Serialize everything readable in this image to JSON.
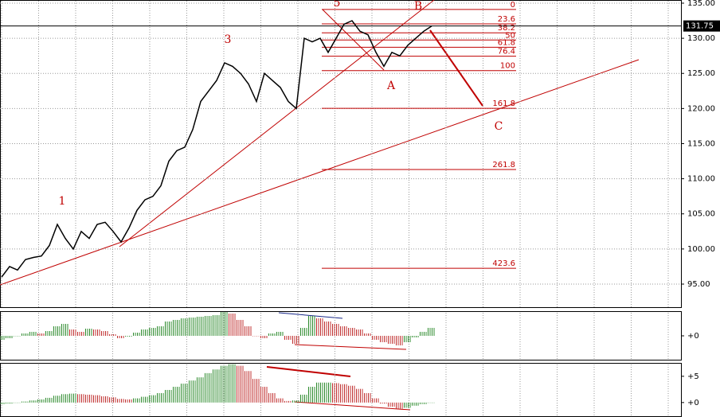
{
  "chart_data": [
    {
      "type": "line",
      "x": [
        0,
        1,
        2,
        3,
        4,
        5,
        6,
        7,
        8,
        9,
        10,
        11,
        12,
        13,
        14,
        15,
        16,
        17,
        18,
        19,
        20,
        21,
        22,
        23,
        24,
        25,
        26,
        27,
        28,
        29,
        30,
        31,
        32,
        33,
        34,
        35,
        36,
        37,
        38,
        39,
        40,
        41,
        42,
        43,
        44,
        45,
        46,
        47,
        48,
        49,
        50,
        51,
        52,
        53,
        54
      ],
      "values": [
        96,
        97.5,
        97,
        98.5,
        98.8,
        99,
        100.5,
        103.5,
        101.5,
        100,
        102.5,
        101.5,
        103.5,
        103.8,
        102.5,
        101,
        103,
        105.5,
        107,
        107.5,
        109,
        112.5,
        114,
        114.5,
        117,
        121,
        122.5,
        124,
        126.5,
        126,
        125,
        123.5,
        121,
        125,
        124,
        123,
        121,
        120,
        130,
        129.5,
        130,
        128,
        130,
        132,
        132.5,
        131,
        130.5,
        128,
        126,
        128,
        127.5,
        129,
        130,
        131,
        131.75
      ],
      "color": "#000000",
      "xlim": [
        -0.2,
        85.3
      ],
      "ylim": [
        91.6,
        135.45
      ],
      "yticks": [
        {
          "value": 95,
          "label": "95.00"
        },
        {
          "value": 100,
          "label": "100.00"
        },
        {
          "value": 105,
          "label": "105.00"
        },
        {
          "value": 110,
          "label": "110.00"
        },
        {
          "value": 115,
          "label": "115.00"
        },
        {
          "value": 120,
          "label": "120.00"
        },
        {
          "value": 125,
          "label": "125.00"
        },
        {
          "value": 130,
          "label": "130.00"
        },
        {
          "value": 135,
          "label": "135.00"
        }
      ],
      "grid": true,
      "last_value": 131.75,
      "levels": [
        {
          "value": 134.1,
          "label": "0"
        },
        {
          "value": 132.05,
          "label": "23.6"
        },
        {
          "value": 130.78,
          "label": "38.2"
        },
        {
          "value": 129.75,
          "label": "50"
        },
        {
          "value": 128.72,
          "label": "61.8"
        },
        {
          "value": 127.45,
          "label": "76.4"
        },
        {
          "value": 125.4,
          "label": "100"
        },
        {
          "value": 120.02,
          "label": "161.8"
        },
        {
          "value": 111.32,
          "label": "261.8"
        },
        {
          "value": 97.25,
          "label": "423.6"
        }
      ],
      "level_color": "#c00000",
      "annotations": [
        "1",
        "3",
        "5",
        "A",
        "B",
        "C"
      ]
    },
    {
      "type": "bar",
      "values": [
        -0.5,
        -0.3,
        0,
        0.3,
        0.5,
        0.3,
        0.6,
        1.2,
        1.5,
        0.8,
        0.5,
        0.9,
        0.8,
        0.6,
        0.2,
        -0.3,
        -0.1,
        0.4,
        0.8,
        1.0,
        1.2,
        1.8,
        2.0,
        2.2,
        2.3,
        2.4,
        2.5,
        2.6,
        3.0,
        2.8,
        2.0,
        1.2,
        0,
        -0.3,
        0.3,
        0.5,
        -0.5,
        -1.0,
        1.0,
        2.5,
        2.2,
        1.8,
        1.5,
        1.2,
        1.0,
        0.8,
        0.3,
        -0.5,
        -0.8,
        -1.0,
        -1.2,
        -0.8,
        -0.2,
        0.5,
        1.0
      ],
      "ylim": [
        -3,
        3
      ],
      "yticks": [
        {
          "value": 0,
          "label": "+0"
        }
      ],
      "up_color": "#2e8b2e",
      "down_color": "#c03030"
    },
    {
      "type": "bar",
      "values": [
        -0.3,
        -0.2,
        0,
        0.2,
        0.4,
        0.6,
        0.9,
        1.3,
        1.6,
        1.7,
        1.6,
        1.5,
        1.4,
        1.2,
        1.0,
        0.7,
        0.6,
        0.8,
        1.1,
        1.4,
        1.8,
        2.4,
        3.0,
        3.6,
        4.2,
        4.8,
        5.6,
        6.3,
        7.0,
        7.3,
        7.0,
        6.0,
        4.5,
        3.0,
        1.8,
        0.8,
        0.3,
        0.4,
        1.5,
        3.0,
        3.8,
        3.8,
        3.7,
        3.5,
        3.2,
        2.6,
        1.8,
        0.8,
        -0.2,
        -0.8,
        -1.2,
        -1.0,
        -0.6,
        -0.3,
        0
      ],
      "ylim": [
        -2.6,
        7.4
      ],
      "yticks": [
        {
          "value": 0,
          "label": "+0"
        },
        {
          "value": 5,
          "label": "+5"
        }
      ],
      "up_color": "#2e8b2e",
      "down_color": "#c03030"
    }
  ]
}
